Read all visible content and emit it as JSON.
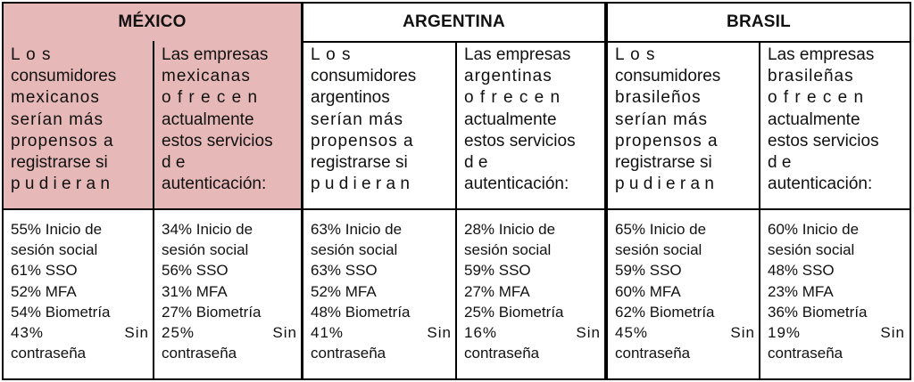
{
  "header": {
    "mexico": "MÉXICO",
    "argentina": "ARGENTINA",
    "brasil": "BRASIL"
  },
  "questions": {
    "mx_consumers": [
      "L      o      s",
      "consumidores",
      "mexicanos",
      "serían más",
      "propensos a",
      "registrarse si",
      "p u d i e r a n"
    ],
    "mx_companies": [
      "Las empresas",
      "mexicanas",
      "o f r e c e n",
      "actualmente",
      "estos servicios",
      "d                        e",
      "autenticación:"
    ],
    "ar_consumers": [
      "L      o      s",
      "consumidores",
      "argentinos",
      "serían más",
      "propensos a",
      "registrarse si",
      "p u d i e r a n"
    ],
    "ar_companies": [
      "Las empresas",
      "argentinas",
      "o f r e c e n",
      "actualmente",
      "estos servicios",
      "d                        e",
      "autenticación:"
    ],
    "br_consumers": [
      "L      o      s",
      "consumidores",
      "brasileños",
      "serían más",
      "propensos a",
      "registrarse si",
      "p u d i e r a n"
    ],
    "br_companies": [
      "Las empresas",
      "brasileñas",
      "o f r e c e n",
      "actualmente",
      "estos servicios",
      "d                        e",
      "autenticación:"
    ]
  },
  "stats": {
    "mx_consumers": {
      "social_a": "55% Inicio de",
      "social_b": "sesión social",
      "sso": "61% SSO",
      "mfa": "52% MFA",
      "bio": "54% Biometría",
      "sin_pct": "43%",
      "sin_word": "Sin",
      "pass": "contraseña"
    },
    "mx_companies": {
      "social_a": "34% Inicio de",
      "social_b": "sesión social",
      "sso": "56% SSO",
      "mfa": "31% MFA",
      "bio": "27% Biometría",
      "sin_pct": "25%",
      "sin_word": "Sin",
      "pass": "contraseña"
    },
    "ar_consumers": {
      "social_a": "63% Inicio de",
      "social_b": "sesión social",
      "sso": "63% SSO",
      "mfa": "52% MFA",
      "bio": "48% Biometría",
      "sin_pct": "41%",
      "sin_word": "Sin",
      "pass": "contraseña"
    },
    "ar_companies": {
      "social_a": "28% Inicio de",
      "social_b": "sesión social",
      "sso": "59% SSO",
      "mfa": "27% MFA",
      "bio": "25% Biometría",
      "sin_pct": "16%",
      "sin_word": "Sin",
      "pass": "contraseña"
    },
    "br_consumers": {
      "social_a": "65% Inicio de",
      "social_b": "sesión social",
      "sso": "59% SSO",
      "mfa": "60% MFA",
      "bio": "62% Biometría",
      "sin_pct": "45%",
      "sin_word": "Sin",
      "pass": "contraseña"
    },
    "br_companies": {
      "social_a": "60% Inicio de",
      "social_b": "sesión social",
      "sso": "48% SSO",
      "mfa": "23% MFA",
      "bio": "36% Biometría",
      "sin_pct": "19%",
      "sin_word": "Sin",
      "pass": "contraseña"
    }
  },
  "colors": {
    "mexico_highlight": "#e6b8b7",
    "border": "#000000"
  }
}
